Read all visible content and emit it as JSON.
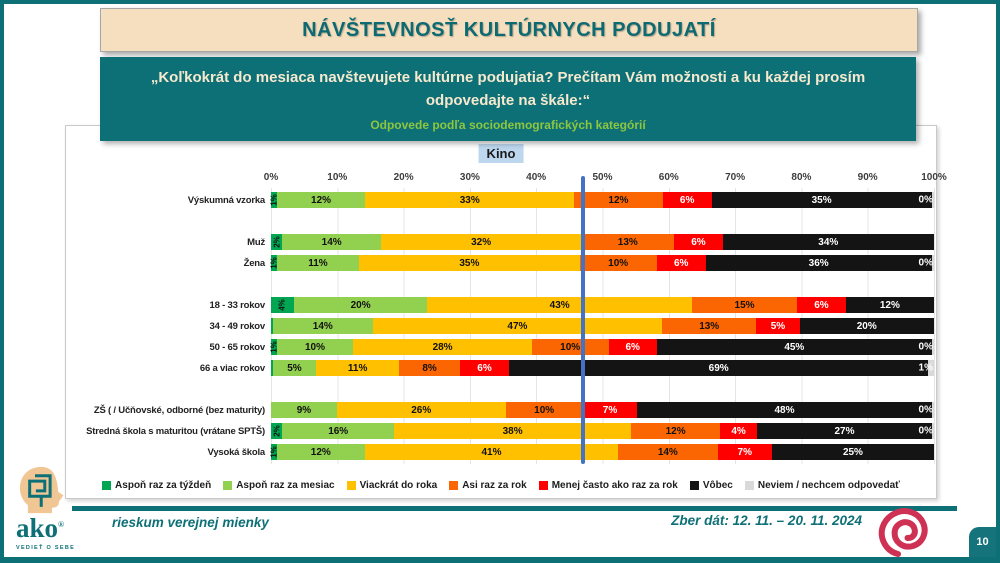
{
  "slide": {
    "title": "NÁVŠTEVNOSŤ KULTÚRNYCH PODUJATÍ",
    "question": "„Koľkokrát do mesiaca navštevujete kultúrne podujatia? Prečítam Vám možnosti a ku každej prosím odpovedajte na škále:“",
    "subtitle": "Odpovede podľa sociodemografických kategórií",
    "page_number": "10"
  },
  "footer": {
    "brand": "ako",
    "brand_slogan": "VEDIEŤ O SEBE",
    "tagline": "rieskum verejnej mienky",
    "dates": "Zber dát: 12. 11. – 20. 11. 2024"
  },
  "chart_data": {
    "type": "bar",
    "orientation": "horizontal-stacked",
    "title": "Kino",
    "xlabel": "",
    "ylabel": "",
    "xlim": [
      0,
      100
    ],
    "grid": true,
    "legend_position": "bottom",
    "reference_line_pct": 47.1,
    "reference_line_color": "#4472C4",
    "x_ticks": [
      "0%",
      "10%",
      "20%",
      "30%",
      "40%",
      "50%",
      "60%",
      "70%",
      "80%",
      "90%",
      "100%"
    ],
    "categories": [
      "Výskumná vzorka",
      "Muž",
      "Žena",
      "18 - 33 rokov",
      "34 - 49 rokov",
      "50 - 65 rokov",
      "66 a viac rokov",
      "ZŠ ( / Učňovské, odborné (bez maturity)",
      "Stredná škola s maturitou (vrátane SPTŠ)",
      "Vysoká škola"
    ],
    "group_starts": [
      1,
      3,
      7
    ],
    "series": [
      {
        "name": "Aspoň raz za týždeň",
        "color": "#00A651",
        "values": [
          1,
          2,
          1,
          4,
          0,
          1,
          0,
          0,
          2,
          1
        ],
        "widths": [
          1,
          2,
          1,
          4,
          0.3,
          1,
          0.3,
          0,
          2,
          1
        ],
        "labels": [
          "1%",
          "2%",
          "1%",
          "4%",
          "",
          "1%",
          "",
          "",
          "2%",
          "1%"
        ]
      },
      {
        "name": "Aspoň raz za mesiac",
        "color": "#92D050",
        "values": [
          12,
          14,
          11,
          20,
          14,
          10,
          5,
          9,
          16,
          12
        ],
        "widths": [
          12,
          14,
          11,
          20,
          14,
          10,
          5,
          9,
          16,
          12
        ],
        "labels": [
          "12%",
          "14%",
          "11%",
          "20%",
          "14%",
          "10%",
          "5%",
          "9%",
          "16%",
          "12%"
        ]
      },
      {
        "name": "Viackrát do roka",
        "color": "#FFC000",
        "values": [
          33,
          32,
          35,
          43,
          47,
          28,
          11,
          26,
          38,
          41
        ],
        "widths": [
          33,
          32,
          35,
          43,
          47,
          28,
          11,
          26,
          38,
          41
        ],
        "labels": [
          "33%",
          "32%",
          "35%",
          "43%",
          "47%",
          "28%",
          "11%",
          "26%",
          "38%",
          "41%"
        ]
      },
      {
        "name": "Asi raz za rok",
        "color": "#FB6602",
        "values": [
          12,
          13,
          10,
          15,
          13,
          10,
          8,
          10,
          12,
          14
        ],
        "widths": [
          12,
          13,
          10,
          15,
          13,
          10,
          8,
          10,
          12,
          14
        ],
        "labels": [
          "12%",
          "13%",
          "10%",
          "15%",
          "13%",
          "10%",
          "8%",
          "10%",
          "12%",
          "14%"
        ]
      },
      {
        "name": "Menej často ako raz za rok",
        "color": "#FF0000",
        "values": [
          6,
          6,
          6,
          6,
          5,
          6,
          6,
          7,
          4,
          7
        ],
        "widths": [
          6,
          6,
          6,
          6,
          5,
          6,
          6,
          7,
          4,
          7
        ],
        "labels": [
          "6%",
          "6%",
          "6%",
          "6%",
          "5%",
          "6%",
          "6%",
          "7%",
          "4%",
          "7%"
        ]
      },
      {
        "name": "Vôbec",
        "color": "#141414",
        "values": [
          35,
          34,
          36,
          12,
          20,
          45,
          69,
          48,
          27,
          25
        ],
        "widths": [
          35,
          34,
          36,
          12,
          20,
          45,
          69,
          48,
          27,
          25
        ],
        "labels": [
          "35%",
          "34%",
          "36%",
          "12%",
          "20%",
          "45%",
          "69%",
          "48%",
          "27%",
          "25%"
        ]
      },
      {
        "name": "Neviem / nechcem odpovedať",
        "color": "#D9D9D9",
        "values": [
          0,
          0,
          0,
          0,
          0,
          0,
          1,
          0,
          0,
          0
        ],
        "widths": [
          0.4,
          0,
          0.4,
          0,
          0,
          0.4,
          1,
          0.4,
          0.4,
          0
        ],
        "labels": [
          "0%",
          "",
          "0%",
          "",
          "",
          "0%",
          "1%",
          "0%",
          "0%",
          ""
        ]
      }
    ]
  }
}
